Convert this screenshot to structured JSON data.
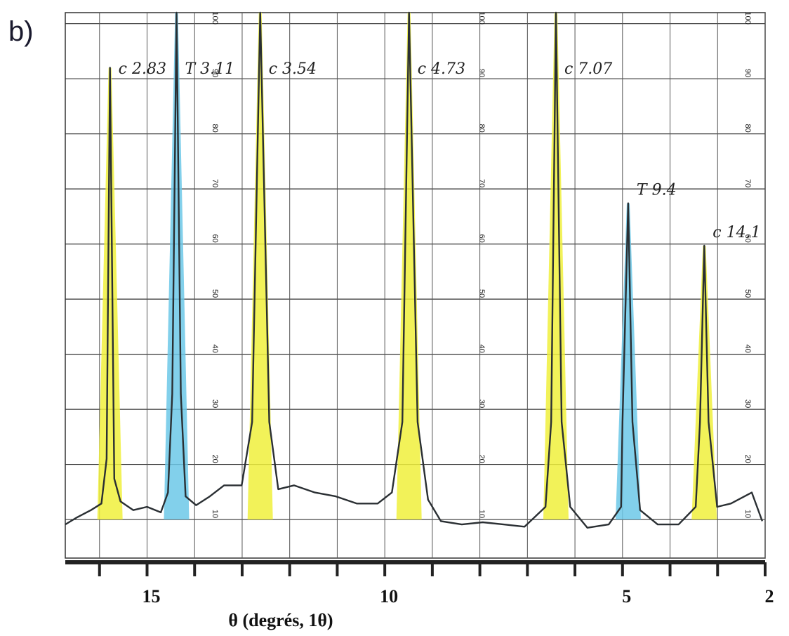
{
  "chart_data": {
    "type": "line",
    "panel_label": "b)",
    "x_label": "θ (degrés, 1θ)",
    "xlim": [
      16.72,
      2.0
    ],
    "ylim": [
      3,
      102
    ],
    "xticks": [
      15,
      10,
      5,
      2
    ],
    "xminor_ticks": [
      16,
      14,
      13,
      12,
      11,
      9,
      8,
      7,
      6,
      4,
      3
    ],
    "yticks": [
      10,
      20,
      30,
      40,
      50,
      60,
      70,
      80,
      90,
      100
    ],
    "grid": true,
    "color": "#2a2f33",
    "x": [
      16.72,
      16.47,
      16.18,
      15.96,
      15.85,
      15.78,
      15.69,
      15.56,
      15.29,
      15.0,
      14.71,
      14.56,
      14.47,
      14.38,
      14.29,
      14.19,
      13.97,
      13.68,
      13.38,
      13.01,
      12.79,
      12.62,
      12.43,
      12.24,
      11.91,
      11.47,
      11.03,
      10.59,
      10.15,
      9.85,
      9.63,
      9.49,
      9.31,
      9.09,
      8.82,
      8.38,
      7.94,
      7.5,
      7.06,
      6.62,
      6.5,
      6.4,
      6.28,
      6.1,
      5.74,
      5.29,
      5.03,
      5.0,
      4.88,
      4.79,
      4.63,
      4.26,
      3.82,
      3.46,
      3.37,
      3.28,
      3.19,
      3.01,
      2.72,
      2.28,
      2.06
    ],
    "values": [
      9.1,
      10.4,
      11.7,
      12.9,
      21,
      92,
      17.4,
      13.3,
      11.7,
      12.3,
      11.3,
      14.9,
      32.8,
      102,
      32.8,
      14.2,
      12.6,
      14.2,
      16.2,
      16.2,
      27.7,
      102,
      27.7,
      15.5,
      16.2,
      14.9,
      14.2,
      12.9,
      12.9,
      14.9,
      27.7,
      102,
      27.7,
      13.6,
      9.7,
      9.1,
      9.5,
      9.1,
      8.7,
      12.3,
      27.7,
      102,
      27.7,
      12.3,
      8.5,
      9.1,
      12.3,
      27.7,
      67.4,
      27.7,
      11.7,
      9.1,
      9.1,
      12.3,
      27.7,
      59.7,
      27.7,
      12.3,
      12.9,
      14.9,
      9.7
    ],
    "peaks": [
      {
        "label": "c 2.83",
        "x": 15.78,
        "height": 92,
        "color": "#f0f03c"
      },
      {
        "label": "T 3.11",
        "x": 14.38,
        "height": 102,
        "color": "#6cc8e8"
      },
      {
        "label": "c 3.54",
        "x": 12.62,
        "height": 102,
        "color": "#f0f03c"
      },
      {
        "label": "c 4.73",
        "x": 9.49,
        "height": 102,
        "color": "#f0f03c"
      },
      {
        "label": "c 7.07",
        "x": 6.4,
        "height": 102,
        "color": "#f0f03c"
      },
      {
        "label": "T 9.4",
        "x": 4.88,
        "height": 67.4,
        "color": "#6cc8e8"
      },
      {
        "label": "c 14.1",
        "x": 3.28,
        "height": 59.7,
        "color": "#f0f03c"
      }
    ]
  }
}
